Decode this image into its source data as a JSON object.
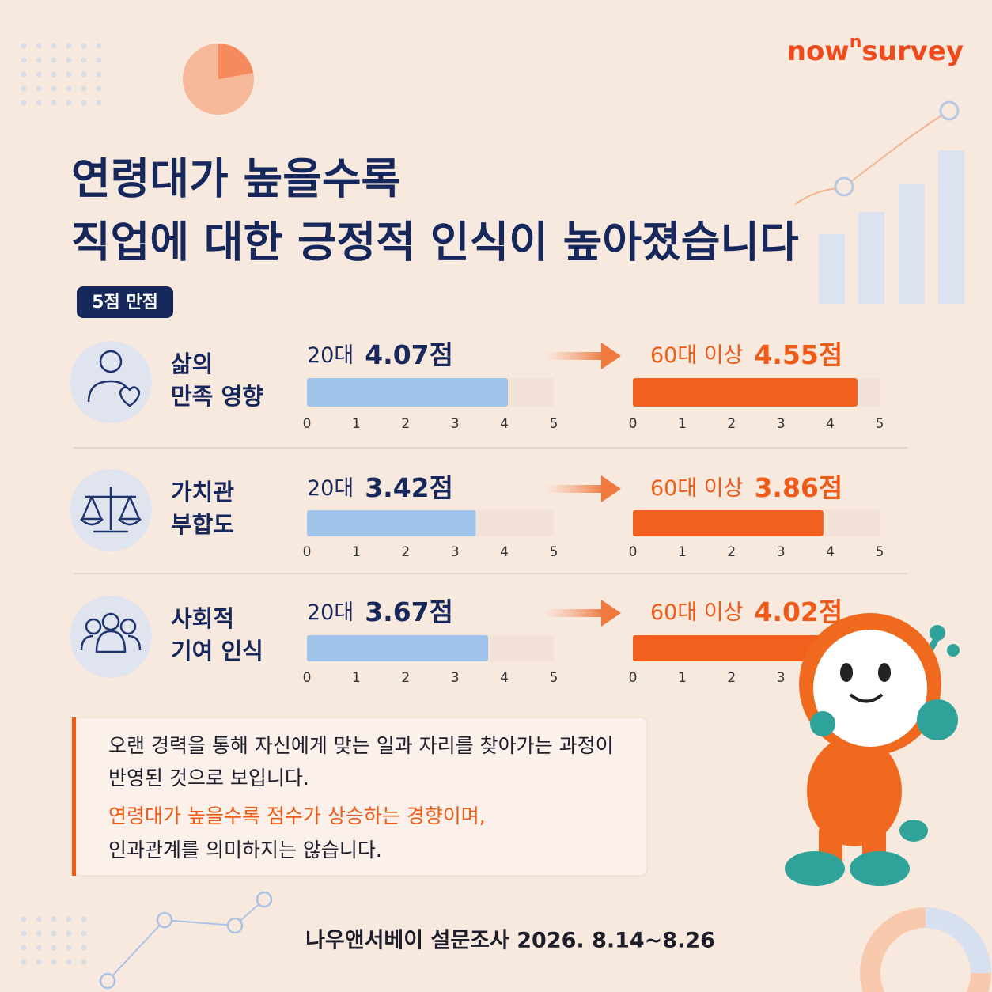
{
  "brand": {
    "pre": "now",
    "sup": "n",
    "post": "survey"
  },
  "title": [
    "연령대가 높을수록",
    "직업에 대한 긍정적 인식이 높아졌습니다"
  ],
  "badge": "5점 만점",
  "scale": {
    "lim": [
      0,
      5
    ],
    "ticks": [
      0,
      1,
      2,
      3,
      4,
      5
    ]
  },
  "rows": [
    {
      "label": [
        "삶의",
        "만족 영향"
      ],
      "groups": [
        {
          "name": "20대",
          "value": 4.07,
          "value_label": "4.07점",
          "color": "#9fc3ea"
        },
        {
          "name": "60대 이상",
          "value": 4.55,
          "value_label": "4.55점",
          "color": "#f2601e"
        }
      ]
    },
    {
      "label": [
        "가치관",
        "부합도"
      ],
      "groups": [
        {
          "name": "20대",
          "value": 3.42,
          "value_label": "3.42점",
          "color": "#9fc3ea"
        },
        {
          "name": "60대 이상",
          "value": 3.86,
          "value_label": "3.86점",
          "color": "#f2601e"
        }
      ]
    },
    {
      "label": [
        "사회적",
        "기여 인식"
      ],
      "groups": [
        {
          "name": "20대",
          "value": 3.67,
          "value_label": "3.67점",
          "color": "#9fc3ea"
        },
        {
          "name": "60대 이상",
          "value": 4.02,
          "value_label": "4.02점",
          "color": "#f2601e"
        }
      ]
    }
  ],
  "note": {
    "text": [
      "오랜 경력을 통해 자신에게 맞는 일과 자리를 찾아가는 과정이",
      "반영된 것으로 보입니다."
    ],
    "emphasis": "연령대가 높을수록 점수가 상승하는 경향이며,",
    "closing": "인과관계를 의미하지는 않습니다."
  },
  "footer": "나우앤서베이 설문조사 2026. 8.14~8.26"
}
